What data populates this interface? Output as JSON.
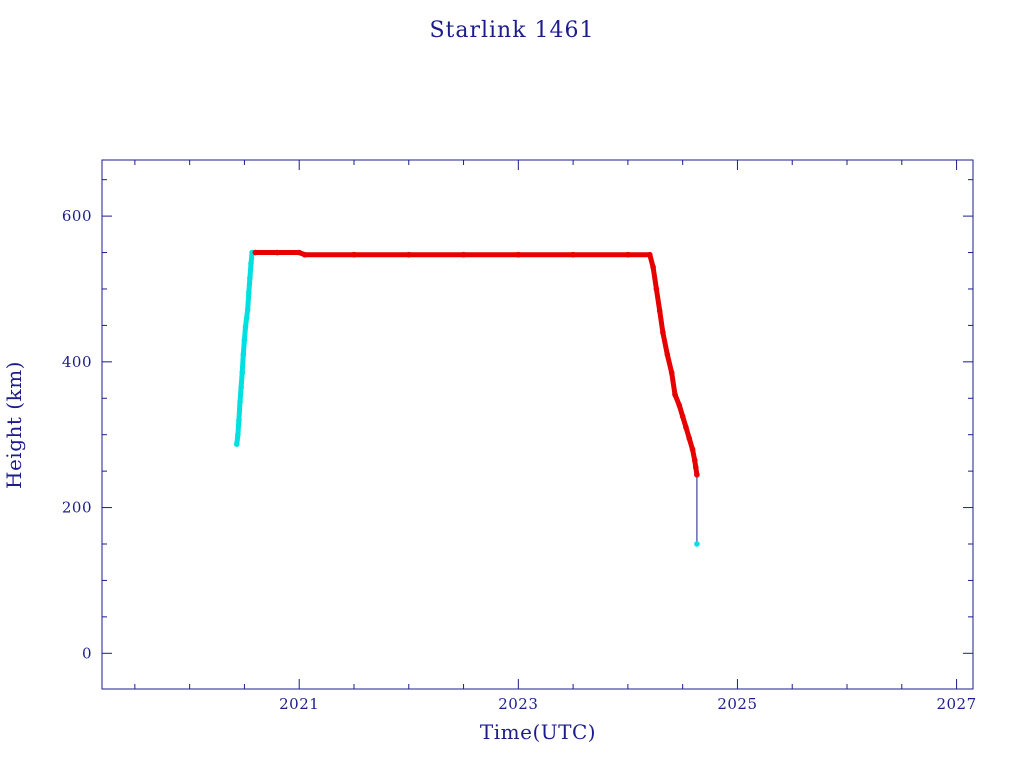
{
  "chart_data": {
    "type": "scatter",
    "title": "Starlink 1461",
    "xlabel": "Time(UTC)",
    "ylabel": "Height (km)",
    "xlim": [
      2019.2,
      2027.15
    ],
    "ylim": [
      -49,
      677
    ],
    "x_ticks": [
      2021,
      2023,
      2025,
      2027
    ],
    "x_tick_labels": [
      "2021",
      "2023",
      "2025",
      "2027"
    ],
    "y_ticks": [
      0,
      200,
      400,
      600
    ],
    "y_tick_labels": [
      "0",
      "200",
      "400",
      "600"
    ],
    "grid": false,
    "colors": {
      "frame": "#1c1c8c",
      "text": "#1c1c8c",
      "raising": "#00e0e0",
      "operational": "#e60000",
      "deorbit_line": "#1c1c8c"
    },
    "series": [
      {
        "color": "#00e0e0",
        "x": [
          2020.43,
          2020.44,
          2020.45,
          2020.46,
          2020.47,
          2020.48,
          2020.49,
          2020.5,
          2020.51,
          2020.52,
          2020.53,
          2020.54,
          2020.55,
          2020.56,
          2020.57
        ],
        "y": [
          287,
          300,
          320,
          345,
          365,
          385,
          410,
          430,
          448,
          460,
          472,
          495,
          515,
          535,
          550
        ]
      },
      {
        "color": "#e60000",
        "x": [
          2020.6,
          2020.8,
          2021.0,
          2021.05,
          2021.5,
          2022.0,
          2022.5,
          2023.0,
          2023.5,
          2024.0,
          2024.2,
          2024.23,
          2024.26,
          2024.29,
          2024.32,
          2024.36,
          2024.4,
          2024.43,
          2024.47,
          2024.5,
          2024.53,
          2024.56,
          2024.59,
          2024.61,
          2024.62,
          2024.63
        ],
        "y": [
          550,
          550,
          550,
          547,
          547,
          547,
          547,
          547,
          547,
          547,
          547,
          530,
          500,
          470,
          440,
          410,
          385,
          355,
          340,
          325,
          310,
          295,
          280,
          265,
          255,
          245
        ]
      },
      {
        "color": "#00e0e0",
        "x": [
          2024.63
        ],
        "y": [
          150
        ]
      }
    ],
    "reentry_line": {
      "x": 2024.63,
      "y": [
        245,
        150
      ],
      "color": "#1c1c8c"
    }
  }
}
